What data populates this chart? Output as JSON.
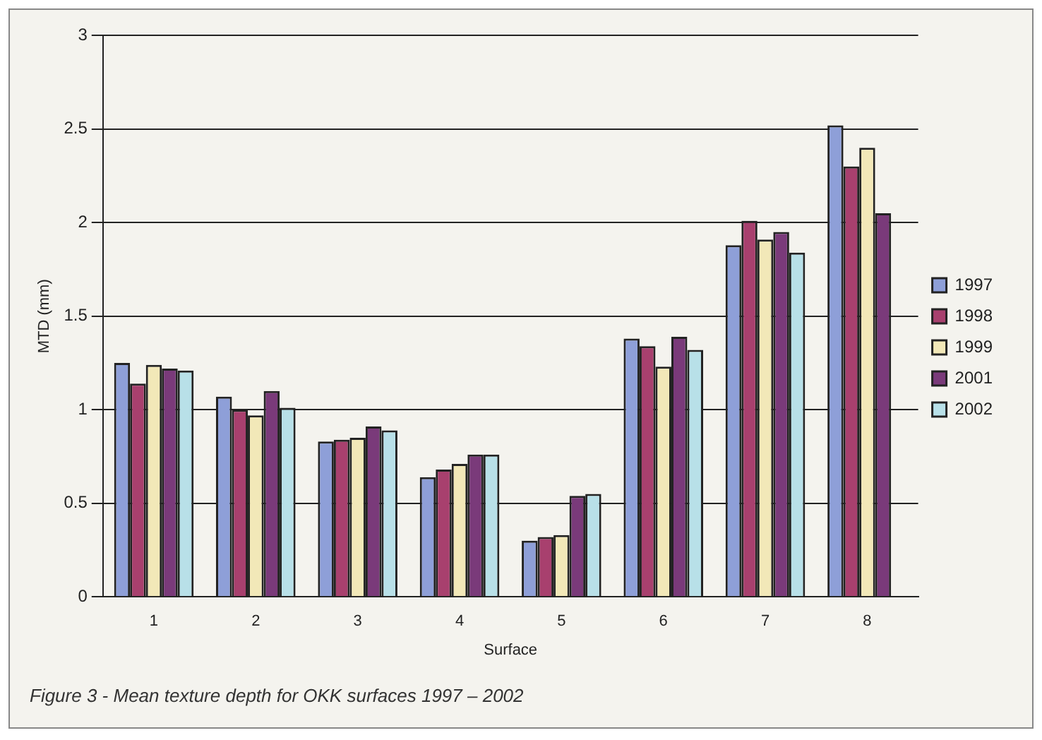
{
  "chart_data": {
    "type": "bar",
    "xlabel": "Surface",
    "ylabel": "MTD (mm)",
    "categories": [
      "1",
      "2",
      "3",
      "4",
      "5",
      "6",
      "7",
      "8"
    ],
    "series": [
      {
        "name": "1997",
        "color": "#8e9fd8",
        "values": [
          1.25,
          1.07,
          0.83,
          0.64,
          0.3,
          1.38,
          1.88,
          2.52
        ]
      },
      {
        "name": "1998",
        "color": "#a8406e",
        "values": [
          1.14,
          1.0,
          0.84,
          0.68,
          0.32,
          1.34,
          2.01,
          2.3
        ]
      },
      {
        "name": "1999",
        "color": "#f2e8b8",
        "values": [
          1.24,
          0.97,
          0.85,
          0.71,
          0.33,
          1.23,
          1.91,
          2.4
        ]
      },
      {
        "name": "2001",
        "color": "#7a3a7a",
        "values": [
          1.22,
          1.1,
          0.91,
          0.76,
          0.54,
          1.39,
          1.95,
          2.05
        ]
      },
      {
        "name": "2002",
        "color": "#b8e0e8",
        "values": [
          1.21,
          1.01,
          0.89,
          0.76,
          0.55,
          1.32,
          1.84,
          null
        ]
      }
    ],
    "ylim": [
      0,
      3
    ],
    "yticks": [
      0,
      0.5,
      1,
      1.5,
      2,
      2.5,
      3
    ],
    "grid": "y",
    "legend": "right",
    "annotations": [
      "Figure 3 - Mean texture depth for OKK surfaces 1997 – 2002"
    ]
  }
}
